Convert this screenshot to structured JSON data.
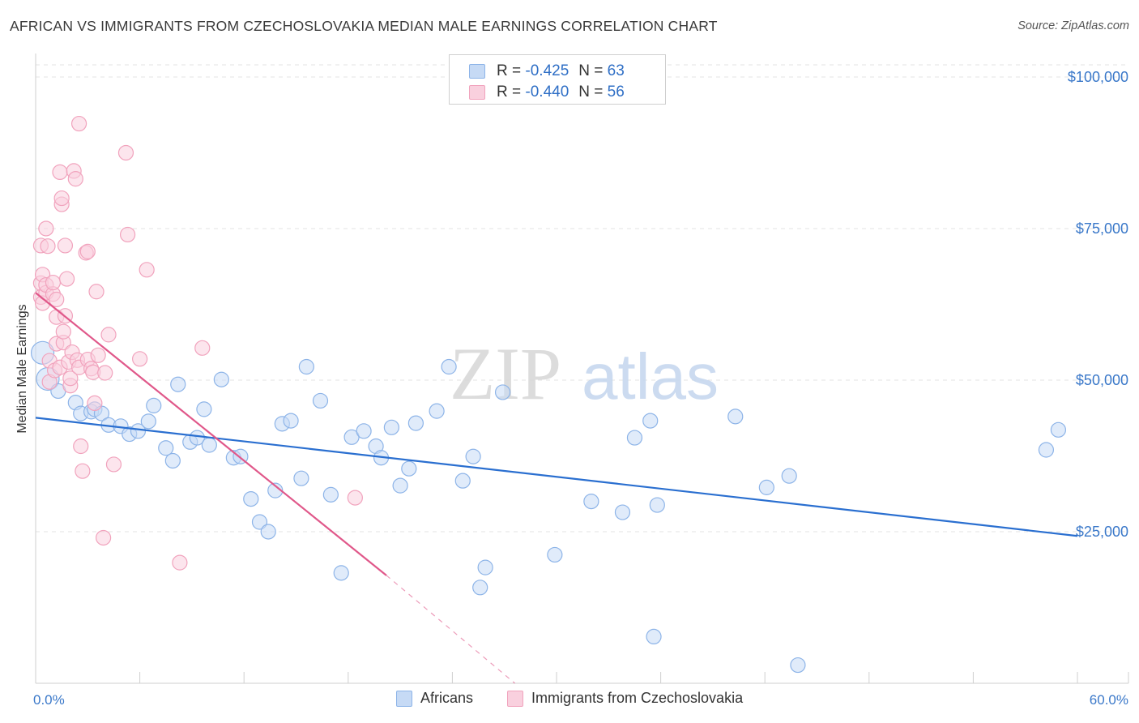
{
  "title": "AFRICAN VS IMMIGRANTS FROM CZECHOSLOVAKIA MEDIAN MALE EARNINGS CORRELATION CHART",
  "source": "Source: ZipAtlas.com",
  "watermark": {
    "zip": "ZIP",
    "atlas": "atlas"
  },
  "legend": {
    "r_label": "R =",
    "n_label": "N =",
    "series": [
      {
        "name": "Africans",
        "r": "-0.425",
        "n": "63",
        "color": "#8db4e8",
        "fill": "#c6daf5",
        "line": "#2a6fd0"
      },
      {
        "name": "Immigrants from Czechoslovakia",
        "r": "-0.440",
        "n": "56",
        "color": "#f1a3bd",
        "fill": "#f9d0de",
        "line": "#e0588a"
      }
    ]
  },
  "chart_data": {
    "type": "scatter",
    "title": "AFRICAN VS IMMIGRANTS FROM CZECHOSLOVAKIA MEDIAN MALE EARNINGS CORRELATION CHART",
    "xlabel": "",
    "ylabel": "Median Male Earnings",
    "x_tick_labels": [
      "0.0%",
      "60.0%"
    ],
    "y_tick_labels": [
      "$25,000",
      "$50,000",
      "$75,000",
      "$100,000"
    ],
    "y_ticks": [
      25000,
      50000,
      75000,
      100000
    ],
    "xlim": [
      0,
      60
    ],
    "ylim": [
      0,
      102000
    ],
    "grid": true,
    "series": [
      {
        "name": "Africans",
        "trend": {
          "x": [
            0,
            60
          ],
          "y": [
            43800,
            24300
          ]
        },
        "points": [
          [
            0.4,
            54500
          ],
          [
            0.7,
            50200
          ],
          [
            1.3,
            48200
          ],
          [
            2.3,
            46300
          ],
          [
            2.6,
            44500
          ],
          [
            3.2,
            44800
          ],
          [
            3.4,
            45200
          ],
          [
            3.8,
            44500
          ],
          [
            4.2,
            42600
          ],
          [
            4.9,
            42400
          ],
          [
            5.4,
            41100
          ],
          [
            5.9,
            41600
          ],
          [
            6.5,
            43200
          ],
          [
            6.8,
            45800
          ],
          [
            7.5,
            38800
          ],
          [
            7.9,
            36700
          ],
          [
            8.2,
            49300
          ],
          [
            8.9,
            39800
          ],
          [
            9.3,
            40500
          ],
          [
            9.7,
            45200
          ],
          [
            10.0,
            39300
          ],
          [
            10.7,
            50100
          ],
          [
            11.4,
            37200
          ],
          [
            11.8,
            37400
          ],
          [
            12.4,
            30400
          ],
          [
            12.9,
            26600
          ],
          [
            13.4,
            25000
          ],
          [
            13.8,
            31800
          ],
          [
            14.2,
            42800
          ],
          [
            14.7,
            43300
          ],
          [
            15.3,
            33800
          ],
          [
            15.6,
            52200
          ],
          [
            16.4,
            46600
          ],
          [
            17.0,
            31100
          ],
          [
            17.6,
            18200
          ],
          [
            18.2,
            40600
          ],
          [
            18.9,
            41600
          ],
          [
            19.6,
            39100
          ],
          [
            19.9,
            37200
          ],
          [
            20.5,
            42200
          ],
          [
            21.0,
            32600
          ],
          [
            21.5,
            35400
          ],
          [
            21.9,
            42900
          ],
          [
            23.1,
            44900
          ],
          [
            23.8,
            52200
          ],
          [
            24.6,
            33400
          ],
          [
            25.2,
            37400
          ],
          [
            25.6,
            15800
          ],
          [
            25.9,
            19100
          ],
          [
            26.9,
            48000
          ],
          [
            29.9,
            21200
          ],
          [
            32.0,
            30000
          ],
          [
            33.8,
            28200
          ],
          [
            34.5,
            40500
          ],
          [
            35.4,
            43300
          ],
          [
            35.6,
            7700
          ],
          [
            35.8,
            29400
          ],
          [
            40.3,
            44000
          ],
          [
            42.1,
            32300
          ],
          [
            43.4,
            34200
          ],
          [
            43.9,
            3000
          ],
          [
            58.2,
            38500
          ],
          [
            58.9,
            41800
          ]
        ]
      },
      {
        "name": "Immigrants from Czechoslovakia",
        "trend": {
          "x": [
            0,
            20.2
          ],
          "y": [
            64400,
            17800
          ]
        },
        "trend_dashed": {
          "x": [
            20.2,
            27.6
          ],
          "y": [
            17800,
            0
          ]
        },
        "points": [
          [
            0.3,
            72200
          ],
          [
            0.3,
            66000
          ],
          [
            0.3,
            63700
          ],
          [
            0.4,
            67400
          ],
          [
            0.4,
            62700
          ],
          [
            0.6,
            75000
          ],
          [
            0.6,
            64400
          ],
          [
            0.6,
            65700
          ],
          [
            0.7,
            72100
          ],
          [
            0.8,
            53200
          ],
          [
            0.8,
            49700
          ],
          [
            1.0,
            64200
          ],
          [
            1.0,
            66100
          ],
          [
            1.1,
            51600
          ],
          [
            1.2,
            60400
          ],
          [
            1.2,
            56000
          ],
          [
            1.2,
            63300
          ],
          [
            1.4,
            52100
          ],
          [
            1.4,
            84300
          ],
          [
            1.5,
            79000
          ],
          [
            1.5,
            80000
          ],
          [
            1.6,
            56200
          ],
          [
            1.6,
            58000
          ],
          [
            1.7,
            72200
          ],
          [
            1.7,
            60600
          ],
          [
            1.8,
            66700
          ],
          [
            1.9,
            53000
          ],
          [
            2.0,
            49100
          ],
          [
            2.0,
            50300
          ],
          [
            2.1,
            54600
          ],
          [
            2.2,
            84500
          ],
          [
            2.3,
            83200
          ],
          [
            2.4,
            53300
          ],
          [
            2.5,
            52100
          ],
          [
            2.5,
            92300
          ],
          [
            2.6,
            39100
          ],
          [
            2.7,
            35000
          ],
          [
            2.9,
            71000
          ],
          [
            3.0,
            71200
          ],
          [
            3.0,
            53400
          ],
          [
            3.2,
            51900
          ],
          [
            3.3,
            51300
          ],
          [
            3.4,
            46200
          ],
          [
            3.5,
            64600
          ],
          [
            3.6,
            54100
          ],
          [
            3.9,
            24000
          ],
          [
            4.0,
            51200
          ],
          [
            4.2,
            57500
          ],
          [
            4.5,
            36100
          ],
          [
            5.2,
            87500
          ],
          [
            5.3,
            74000
          ],
          [
            6.0,
            53500
          ],
          [
            6.4,
            68200
          ],
          [
            8.3,
            19900
          ],
          [
            9.6,
            55300
          ],
          [
            18.4,
            30600
          ]
        ]
      }
    ]
  }
}
